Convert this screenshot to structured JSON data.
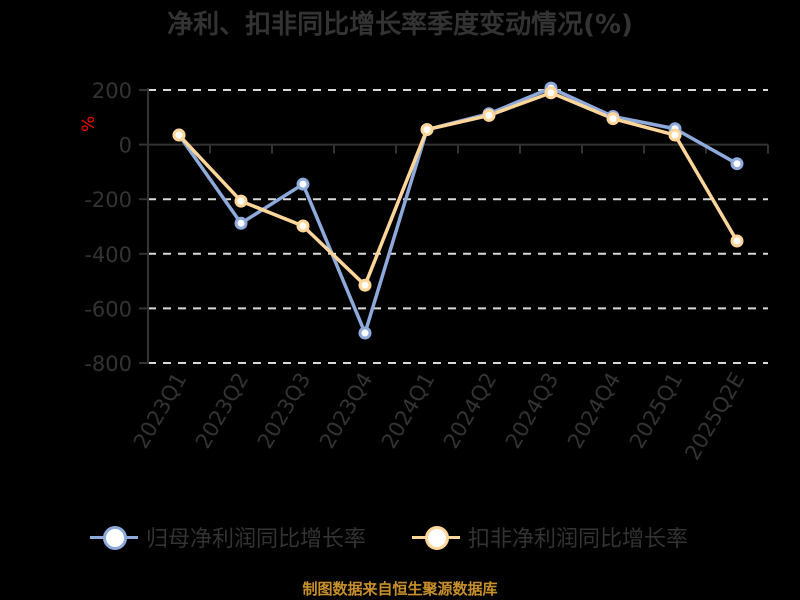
{
  "title": "净利、扣非同比增长率季度变动情况(%)",
  "y_unit_label": "%",
  "source_note": "制图数据来自恒生聚源数据库",
  "legend": [
    {
      "label": "归母净利润同比增长率",
      "color": "#8eaadb",
      "icon": "circle-marker-icon"
    },
    {
      "label": "扣非净利润同比增长率",
      "color": "#ffd699",
      "icon": "circle-marker-icon"
    }
  ],
  "colors": {
    "series_blue": "#8eaadb",
    "series_orange": "#ffd699",
    "axis_text": "#333333",
    "grid": "#d9d9d9",
    "unit_label": "#ff0000",
    "source_text": "#c8902a"
  },
  "chart_data": {
    "type": "line",
    "title": "净利、扣非同比增长率季度变动情况(%)",
    "xlabel": "",
    "ylabel": "%",
    "categories": [
      "2023Q1",
      "2023Q2",
      "2023Q3",
      "2023Q4",
      "2024Q1",
      "2024Q2",
      "2024Q3",
      "2024Q4",
      "2025Q1",
      "2025Q2E"
    ],
    "series": [
      {
        "name": "归母净利润同比增长率",
        "values": [
          35,
          -288,
          -145,
          -690,
          55,
          113,
          207,
          103,
          58,
          -70
        ]
      },
      {
        "name": "扣非净利润同比增长率",
        "values": [
          35,
          -207,
          -298,
          -515,
          55,
          107,
          190,
          95,
          35,
          -353
        ]
      }
    ],
    "yticks": [
      200,
      0,
      -200,
      -400,
      -600,
      -800
    ],
    "ylim": [
      -800,
      200
    ],
    "grid": true,
    "legend_position": "bottom"
  }
}
